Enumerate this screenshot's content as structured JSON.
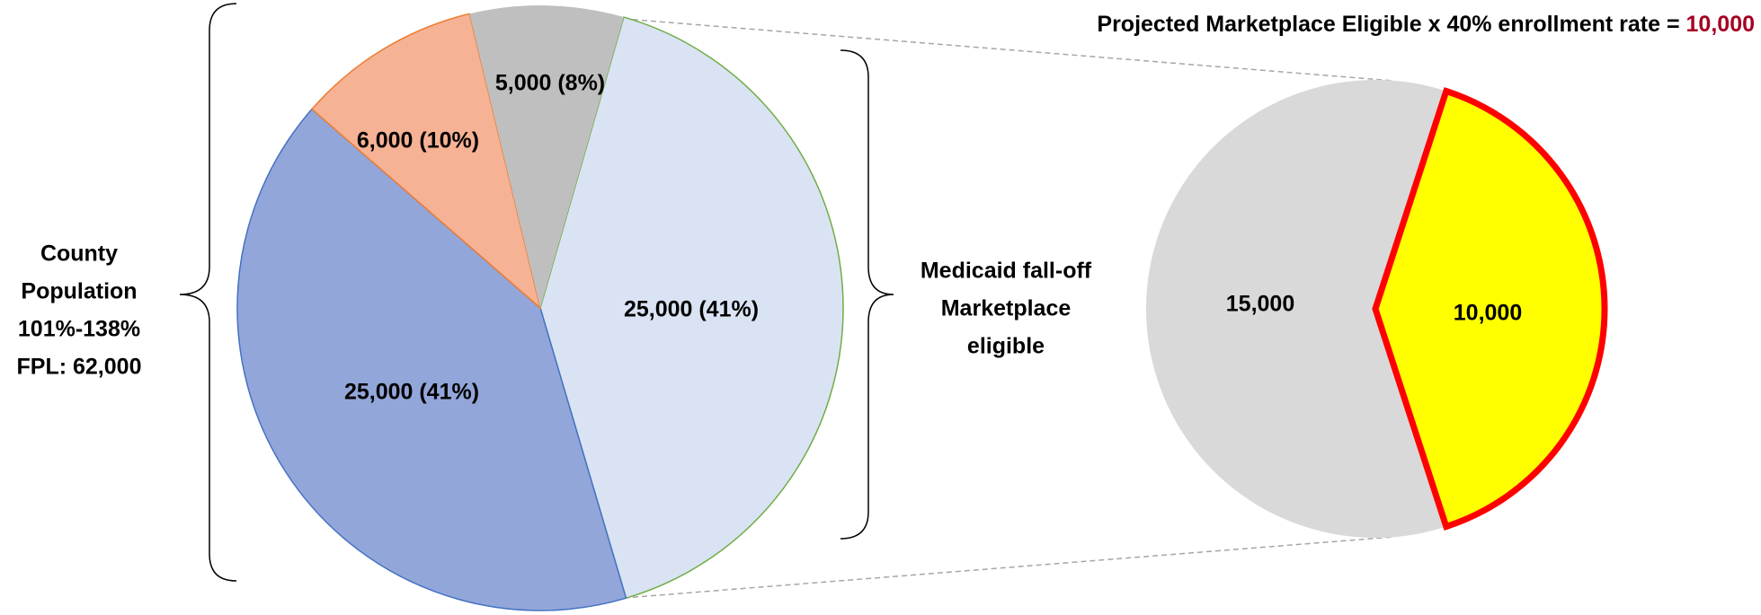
{
  "chart_data": [
    {
      "type": "pie",
      "values": [
        25000,
        25000,
        6000,
        5000
      ],
      "value_labels": [
        "25,000 (41%)",
        "25,000 (41%)",
        "6,000 (10%)",
        "5,000 (8%)"
      ],
      "colors": [
        "#dae3f3",
        "#93a6d9",
        "#f6b294",
        "#bfbfbf"
      ],
      "edgecolors": [
        "#70ad47",
        "#4472c4",
        "#ed7d31",
        "#bfbfbf"
      ],
      "annotation": [
        "County",
        "Population",
        "101%-138%",
        "FPL: 62,000"
      ]
    },
    {
      "type": "pie",
      "title": "Projected Marketplace Eligible x 40% enrollment rate = ",
      "title_value": "10,000",
      "values": [
        15000,
        10000
      ],
      "value_labels": [
        "15,000",
        "10,000"
      ],
      "colors": [
        "#d9d9d9",
        "#ffff00"
      ],
      "edgecolors": [
        "#d9d9d9",
        "#ff0000"
      ],
      "annotation": [
        "Medicaid fall-off",
        "Marketplace",
        "eligible"
      ]
    }
  ]
}
